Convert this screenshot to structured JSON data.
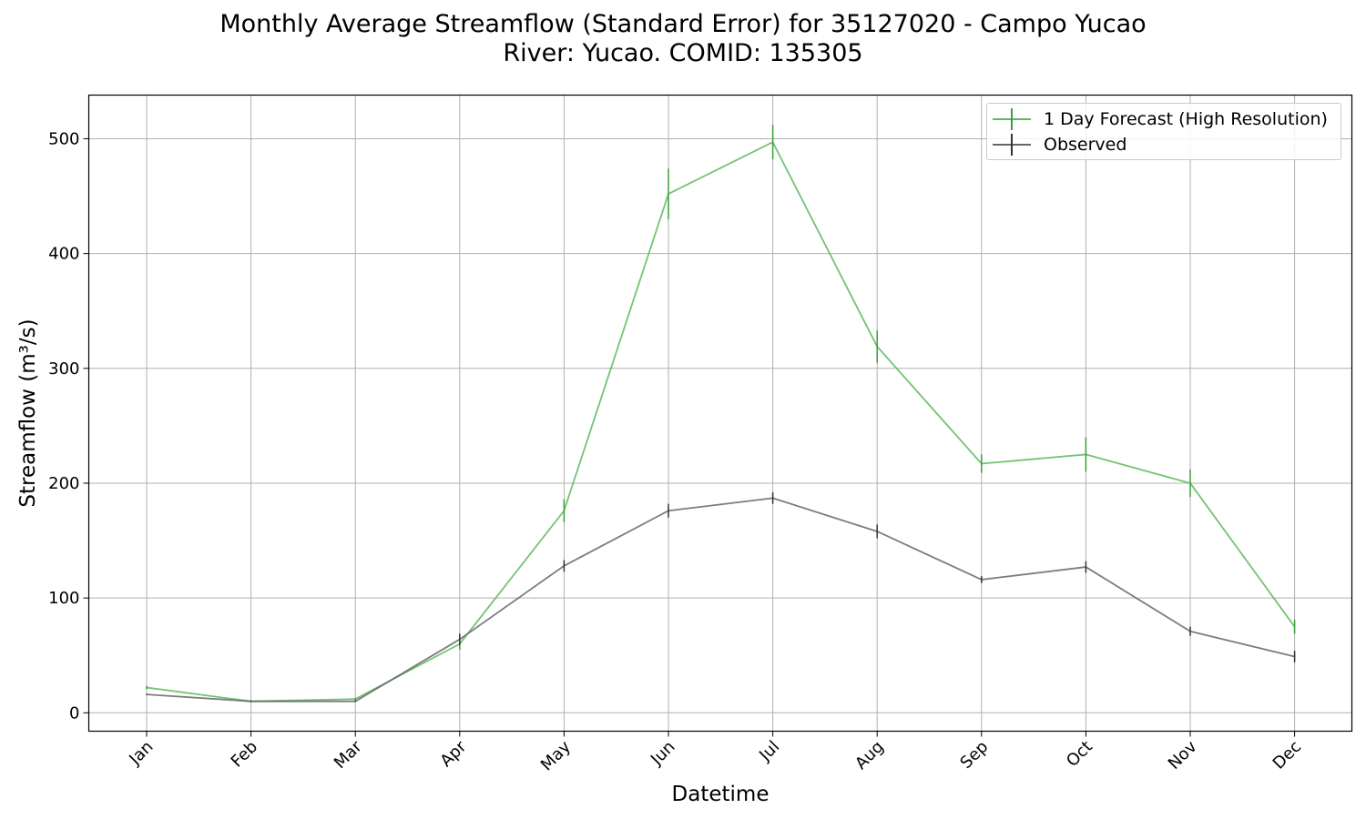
{
  "chart_data": {
    "type": "line",
    "title": "Monthly Average Streamflow (Standard Error) for 35127020 - Campo Yucao",
    "subtitle": "River: Yucao. COMID: 135305",
    "xlabel": "Datetime",
    "ylabel": "Streamflow (m³/s)",
    "categories": [
      "Jan",
      "Feb",
      "Mar",
      "Apr",
      "May",
      "Jun",
      "Jul",
      "Aug",
      "Sep",
      "Oct",
      "Nov",
      "Dec"
    ],
    "ylim": [
      -16,
      538
    ],
    "yticks": [
      0,
      100,
      200,
      300,
      400,
      500
    ],
    "grid": true,
    "legend_position": "top-right",
    "series": [
      {
        "name": "1 Day Forecast (High Resolution)",
        "color": "#5cb85c",
        "errorbar_color": "#3a9f3a",
        "values": [
          22,
          10,
          12,
          60,
          176,
          452,
          497,
          319,
          217,
          225,
          200,
          75
        ],
        "errors": [
          1.5,
          0.5,
          1,
          5,
          10,
          22,
          15,
          14,
          8,
          15,
          12,
          6
        ]
      },
      {
        "name": "Observed",
        "color": "#666666",
        "errorbar_color": "#333333",
        "values": [
          16,
          10,
          10,
          64,
          128,
          176,
          187,
          158,
          116,
          127,
          71,
          49
        ],
        "errors": [
          0.5,
          0.5,
          0.5,
          5,
          5,
          6,
          5,
          6,
          3,
          5,
          4,
          5
        ]
      }
    ]
  }
}
